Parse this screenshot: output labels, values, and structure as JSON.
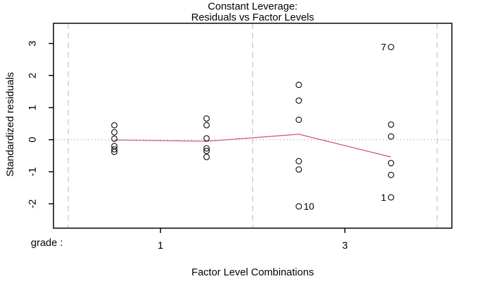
{
  "chart_data": {
    "type": "scatter",
    "title_lines": [
      "Constant Leverage:",
      "Residuals vs Factor Levels"
    ],
    "xlabel": "Factor Level Combinations",
    "ylabel": "Standardized residuals",
    "factor_axis_label": "grade :",
    "xlim": [
      0.34,
      4.66
    ],
    "ylim": [
      -2.76,
      3.63
    ],
    "x_ticks": [
      {
        "pos": 1.5,
        "label": "1"
      },
      {
        "pos": 3.5,
        "label": "3"
      }
    ],
    "y_ticks": [
      -2,
      -1,
      0,
      1,
      2,
      3
    ],
    "group_separators": [
      0.5,
      2.5,
      4.5
    ],
    "zero_reference": 0,
    "grid": false,
    "legend": null,
    "groups": [
      {
        "x": 1,
        "values": [
          0.45,
          0.23,
          0.03,
          -0.2,
          -0.3,
          -0.38
        ]
      },
      {
        "x": 2,
        "values": [
          0.66,
          0.45,
          0.04,
          -0.27,
          -0.35,
          -0.54
        ]
      },
      {
        "x": 3,
        "values": [
          1.71,
          1.22,
          0.62,
          -0.67,
          -0.93,
          -2.08
        ]
      },
      {
        "x": 4,
        "values": [
          2.89,
          0.47,
          0.1,
          -0.73,
          -1.1,
          -1.8
        ]
      }
    ],
    "means_line": [
      {
        "x": 1,
        "y": -0.01
      },
      {
        "x": 2,
        "y": -0.05
      },
      {
        "x": 3,
        "y": 0.17
      },
      {
        "x": 4,
        "y": -0.54
      }
    ],
    "point_labels": [
      {
        "text": "7",
        "x": 4,
        "value": 2.89,
        "side": "left"
      },
      {
        "text": "10",
        "x": 3,
        "value": -2.08,
        "side": "right"
      },
      {
        "text": "1",
        "x": 4,
        "value": -1.8,
        "side": "left"
      }
    ]
  },
  "colors": {
    "background": "#ffffff",
    "box": "#000000",
    "separator_line": "#c6c6c6",
    "zero_line": "#bcbcbc",
    "means_line": "#d0505e",
    "point_stroke": "#000000",
    "text": "#000000"
  }
}
